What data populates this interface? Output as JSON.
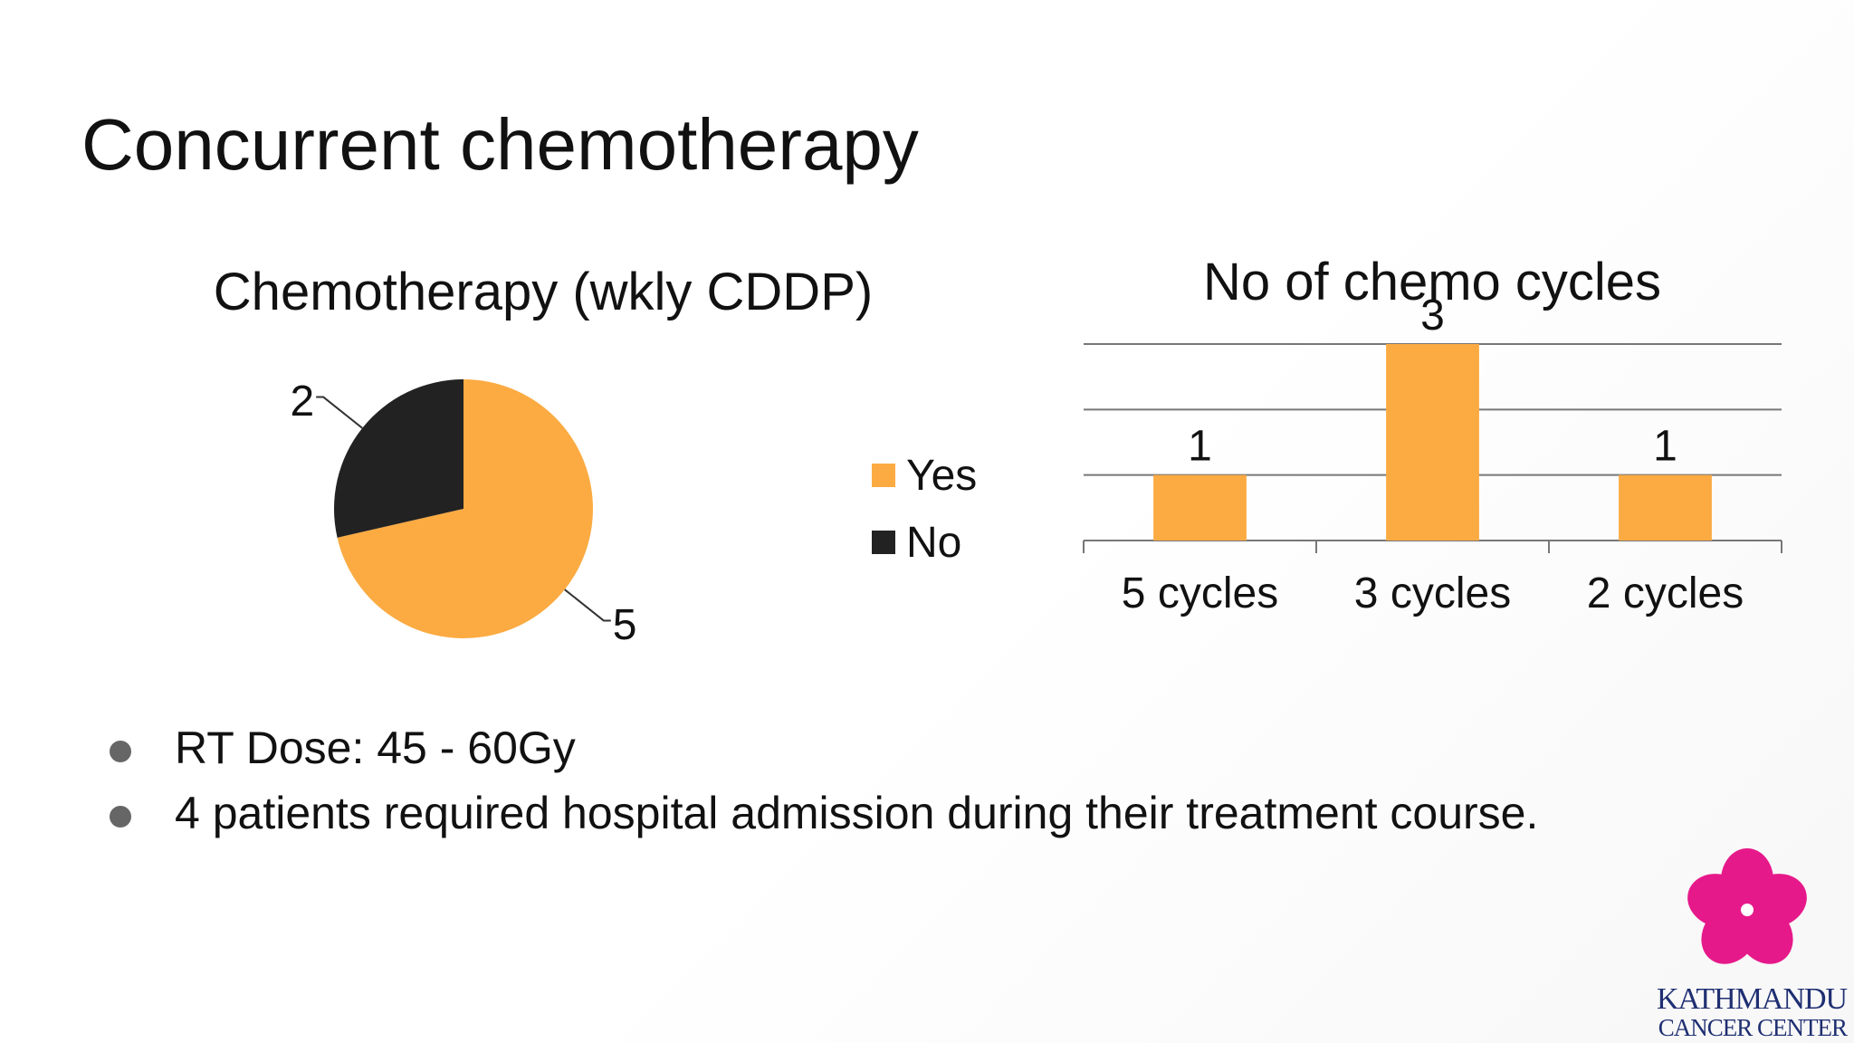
{
  "slide": {
    "title": "Concurrent chemotherapy",
    "bullets": [
      "RT Dose: 45 - 60Gy",
      "4 patients required hospital admission during their treatment course."
    ]
  },
  "logo": {
    "line1": "KATHMANDU",
    "line2": "CANCER CENTER",
    "color": "#e6198a",
    "text_color": "#1f2f72"
  },
  "chart_data": [
    {
      "type": "pie",
      "title": "Chemotherapy (wkly CDDP)",
      "categories": [
        "Yes",
        "No"
      ],
      "values": [
        5,
        2
      ],
      "colors": [
        "#fbab42",
        "#222222"
      ],
      "legend": "right",
      "data_labels": true
    },
    {
      "type": "bar",
      "title": "No of chemo cycles",
      "categories": [
        "5 cycles",
        "3 cycles",
        "2 cycles"
      ],
      "values": [
        1,
        3,
        1
      ],
      "color": "#fbab42",
      "ylim": [
        0,
        3
      ],
      "grid": true,
      "data_labels": true
    }
  ]
}
